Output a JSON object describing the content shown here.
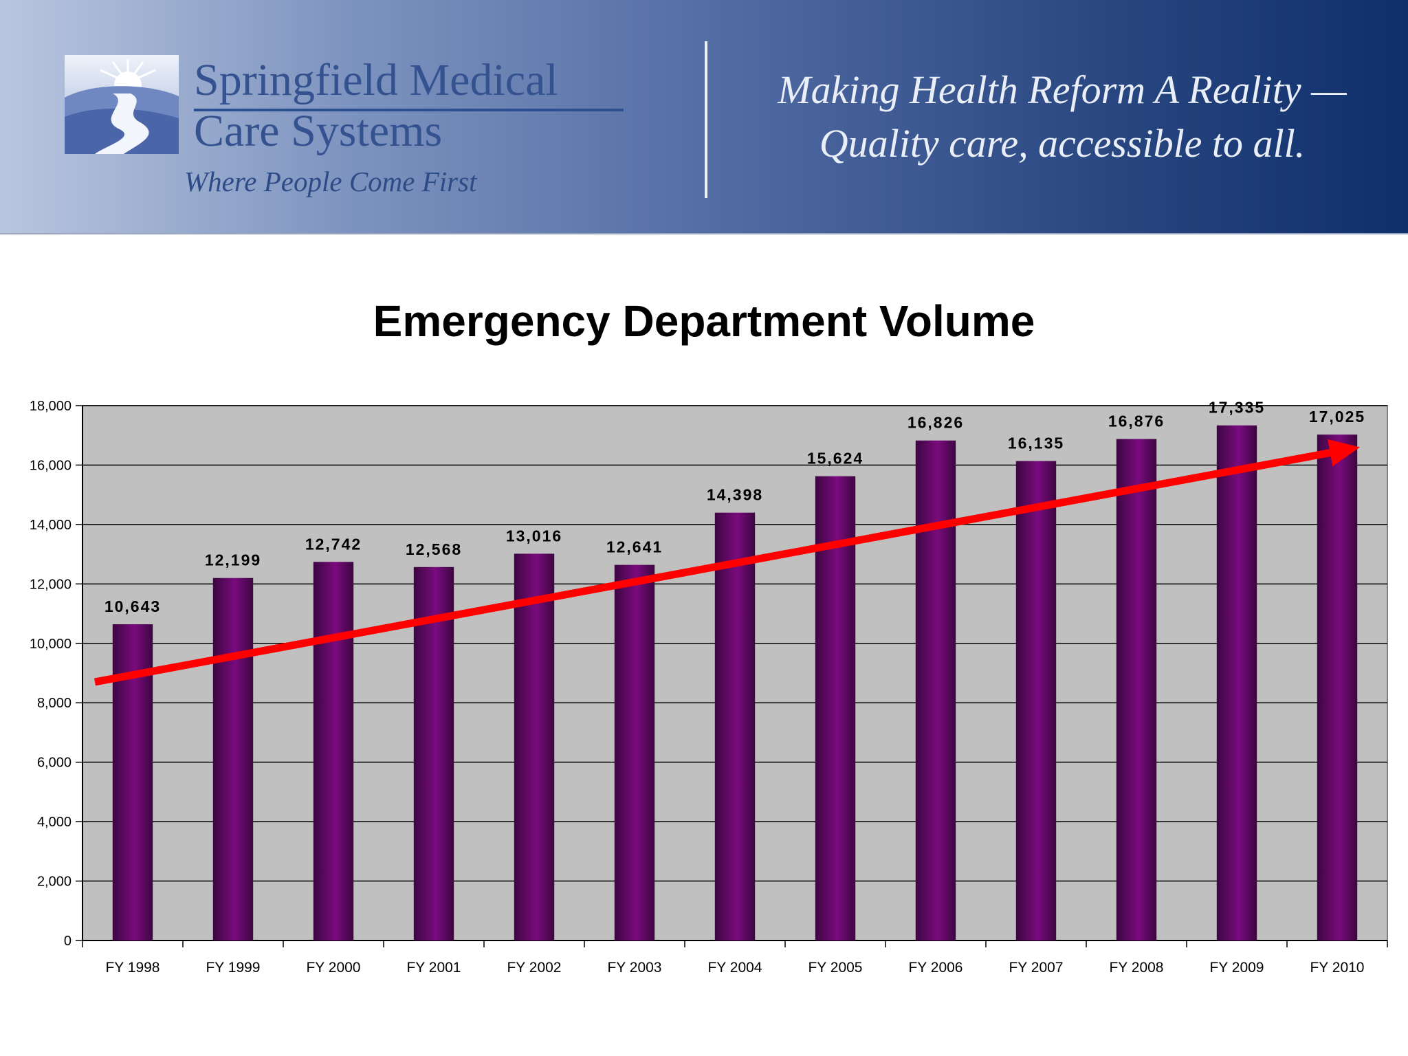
{
  "header": {
    "org_name_line1": "Springfield Medical",
    "org_name_line2": "Care Systems",
    "tagline": "Where People Come First",
    "motto_line1": "Making Health Reform A Reality —",
    "motto_line2": "Quality care, accessible to all.",
    "logo_icon": "sunrise-road-logo-icon"
  },
  "chart_data": {
    "type": "bar",
    "title": "Emergency Department Volume",
    "xlabel": "",
    "ylabel": "",
    "categories": [
      "FY 1998",
      "FY 1999",
      "FY 2000",
      "FY 2001",
      "FY 2002",
      "FY 2003",
      "FY 2004",
      "FY 2005",
      "FY 2006",
      "FY 2007",
      "FY 2008",
      "FY 2009",
      "FY 2010"
    ],
    "values": [
      10643,
      12199,
      12742,
      12568,
      13016,
      12641,
      14398,
      15624,
      16826,
      16135,
      16876,
      17335,
      17025
    ],
    "data_labels": [
      "10,643",
      "12,199",
      "12,742",
      "12,568",
      "13,016",
      "12,641",
      "14,398",
      "15,624",
      "16,826",
      "16,135",
      "16,876",
      "17,335",
      "17,025"
    ],
    "ylim": [
      0,
      18000
    ],
    "yticks": [
      0,
      2000,
      4000,
      6000,
      8000,
      10000,
      12000,
      14000,
      16000,
      18000
    ],
    "ytick_labels": [
      "0",
      "2,000",
      "4,000",
      "6,000",
      "8,000",
      "10,000",
      "12,000",
      "14,000",
      "16,000",
      "18,000"
    ],
    "grid": true,
    "legend": "none",
    "trend_arrow": {
      "start_value": 8700,
      "end_value": 16600
    },
    "colors": {
      "bar_dark": "#3c0640",
      "bar_mid": "#7a0b7e",
      "plot_background": "#c0c0c0",
      "trend_arrow": "#ff0000"
    }
  }
}
